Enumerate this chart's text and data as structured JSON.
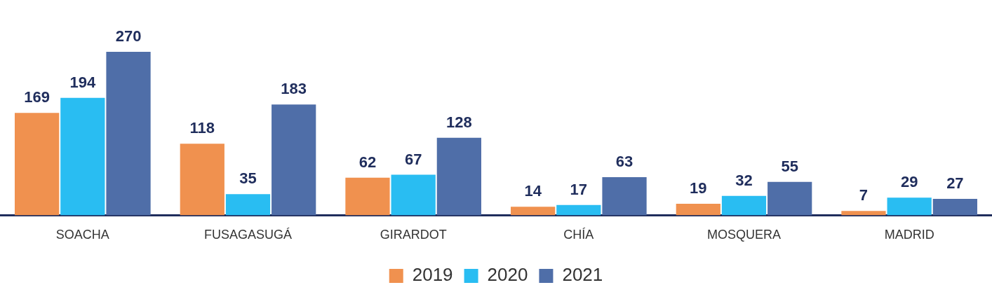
{
  "chart_data": {
    "type": "bar",
    "categories": [
      "SOACHA",
      "FUSAGASUGÁ",
      "GIRARDOT",
      "CHÍA",
      "MOSQUERA",
      "MADRID"
    ],
    "series": [
      {
        "name": "2019",
        "color": "#f0914f",
        "values": [
          169,
          118,
          62,
          14,
          19,
          7
        ]
      },
      {
        "name": "2020",
        "color": "#29bdf2",
        "values": [
          194,
          35,
          67,
          17,
          32,
          29
        ]
      },
      {
        "name": "2021",
        "color": "#4f6ea8",
        "values": [
          270,
          183,
          128,
          63,
          55,
          27
        ]
      }
    ],
    "data_labels": true,
    "legend": "bottom",
    "grid": false
  }
}
